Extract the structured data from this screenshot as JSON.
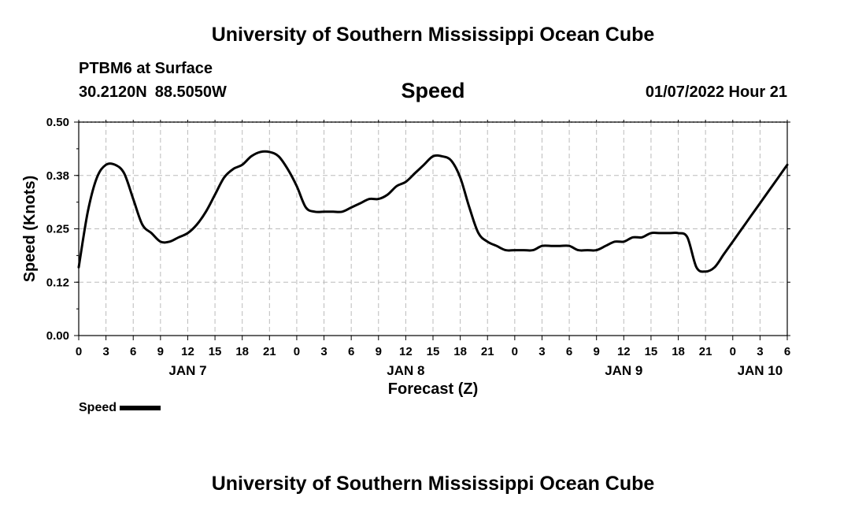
{
  "header": {
    "title": "University of Southern Mississippi Ocean Cube",
    "station": "PTBM6 at Surface",
    "latitude": "30.2120N",
    "longitude": "88.5050W",
    "variable": "Speed",
    "datetime": "01/07/2022 Hour 21"
  },
  "footer": {
    "title": "University of Southern Mississippi Ocean Cube"
  },
  "legend": {
    "label": "Speed"
  },
  "chart_data": {
    "type": "line",
    "title": "Speed",
    "xlabel": "Forecast (Z)",
    "ylabel": "Speed (Knots)",
    "ylim": [
      0,
      0.5
    ],
    "y_ticks": [
      "0.00",
      "0.12",
      "0.25",
      "0.38",
      "0.50"
    ],
    "y_tick_values": [
      0,
      0.125,
      0.25,
      0.375,
      0.5
    ],
    "xlim": [
      0,
      78
    ],
    "x_tick_labels": [
      "0",
      "3",
      "6",
      "9",
      "12",
      "15",
      "18",
      "21",
      "0",
      "3",
      "6",
      "9",
      "12",
      "15",
      "18",
      "21",
      "0",
      "3",
      "6",
      "9",
      "12",
      "15",
      "18",
      "21",
      "0",
      "3",
      "6"
    ],
    "x_tick_positions": [
      0,
      3,
      6,
      9,
      12,
      15,
      18,
      21,
      24,
      27,
      30,
      33,
      36,
      39,
      42,
      45,
      48,
      51,
      54,
      57,
      60,
      63,
      66,
      69,
      72,
      75,
      78
    ],
    "date_labels": [
      {
        "label": "JAN 7",
        "at": 12
      },
      {
        "label": "JAN 8",
        "at": 36
      },
      {
        "label": "JAN 9",
        "at": 60
      },
      {
        "label": "JAN 10",
        "at": 75
      }
    ],
    "x_units": "hours from 01/07/2022 00Z",
    "grid": true,
    "legend_position": "bottom-left",
    "color": "#000000",
    "series": [
      {
        "name": "Speed",
        "x": [
          0,
          1,
          2,
          3,
          4,
          5,
          6,
          7,
          8,
          9,
          10,
          11,
          12,
          13,
          14,
          15,
          16,
          17,
          18,
          19,
          20,
          21,
          22,
          23,
          24,
          25,
          26,
          27,
          28,
          29,
          30,
          31,
          32,
          33,
          34,
          35,
          36,
          37,
          38,
          39,
          40,
          41,
          42,
          43,
          44,
          45,
          46,
          47,
          48,
          49,
          50,
          51,
          52,
          53,
          54,
          55,
          56,
          57,
          58,
          59,
          60,
          61,
          62,
          63,
          64,
          65,
          66,
          67,
          68,
          69,
          70,
          71,
          72,
          73,
          74,
          75,
          76,
          77,
          78
        ],
        "values": [
          0.16,
          0.29,
          0.37,
          0.4,
          0.4,
          0.38,
          0.32,
          0.26,
          0.24,
          0.22,
          0.22,
          0.23,
          0.24,
          0.26,
          0.29,
          0.33,
          0.37,
          0.39,
          0.4,
          0.42,
          0.43,
          0.43,
          0.42,
          0.39,
          0.35,
          0.3,
          0.29,
          0.29,
          0.29,
          0.29,
          0.3,
          0.31,
          0.32,
          0.32,
          0.33,
          0.35,
          0.36,
          0.38,
          0.4,
          0.42,
          0.42,
          0.41,
          0.37,
          0.3,
          0.24,
          0.22,
          0.21,
          0.2,
          0.2,
          0.2,
          0.2,
          0.21,
          0.21,
          0.21,
          0.21,
          0.2,
          0.2,
          0.2,
          0.21,
          0.22,
          0.22,
          0.23,
          0.23,
          0.24,
          0.24,
          0.24,
          0.24,
          0.23,
          0.16,
          0.15,
          0.16,
          0.19,
          0.22,
          0.25,
          0.28,
          0.31,
          0.34,
          0.37,
          0.4
        ]
      }
    ]
  }
}
